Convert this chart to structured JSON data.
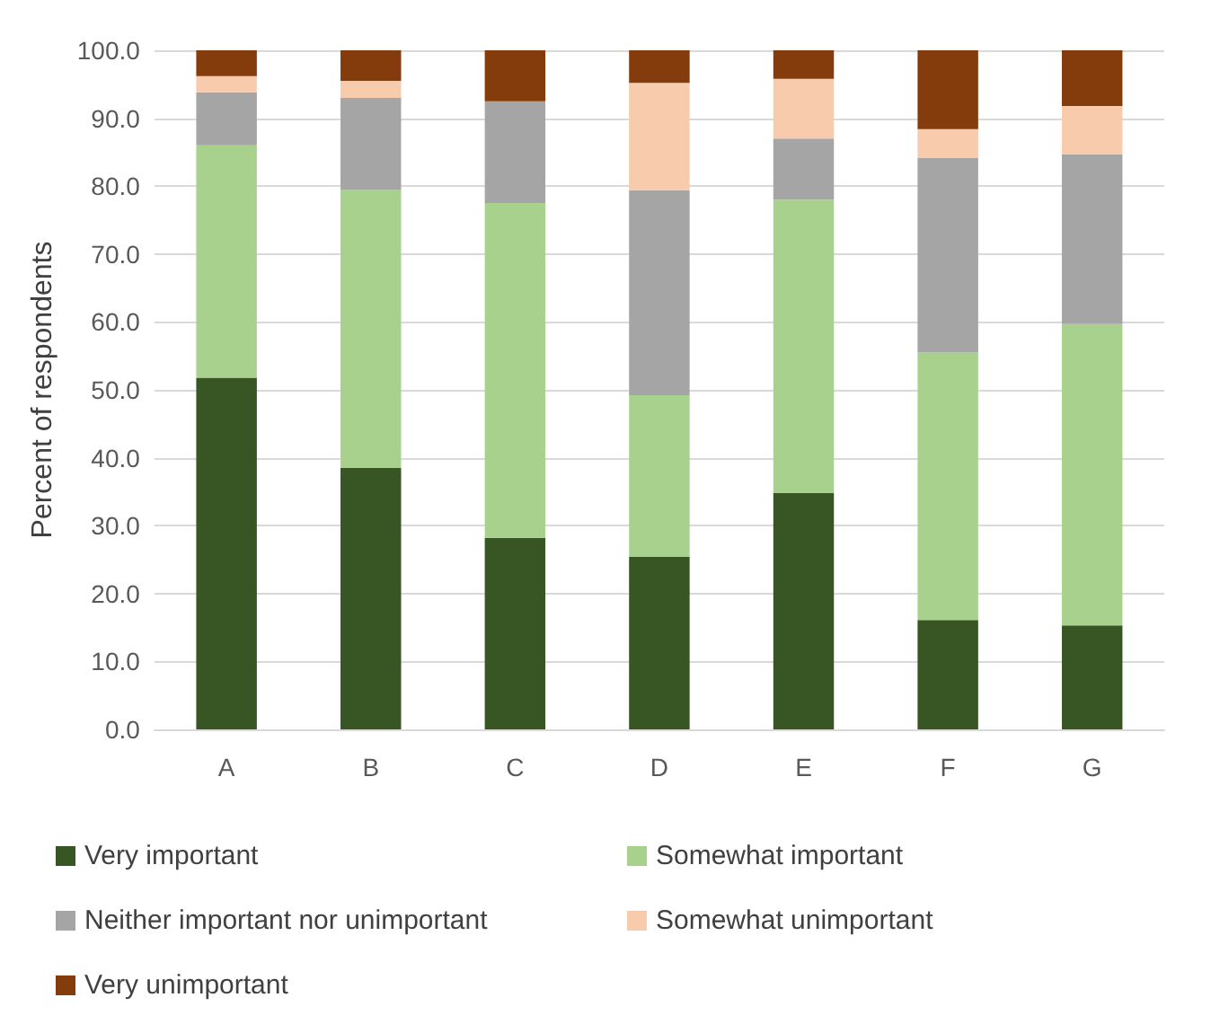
{
  "chart_data": {
    "type": "bar",
    "stacked": true,
    "ylabel": "Percent of respondents",
    "categories": [
      "A",
      "B",
      "C",
      "D",
      "E",
      "F",
      "G"
    ],
    "series": [
      {
        "name": "Very important",
        "color": "#375623",
        "values": [
          51.8,
          38.5,
          28.2,
          25.4,
          34.8,
          16.1,
          15.3
        ]
      },
      {
        "name": "Somewhat important",
        "color": "#a9d18e",
        "values": [
          34.2,
          41.0,
          49.3,
          23.8,
          43.2,
          39.4,
          44.4
        ]
      },
      {
        "name": "Neither important nor unimportant",
        "color": "#a5a5a5",
        "values": [
          7.8,
          13.5,
          15.0,
          30.2,
          9.0,
          28.7,
          25.0
        ]
      },
      {
        "name": "Somewhat unimportant",
        "color": "#f8cbad",
        "values": [
          2.4,
          2.5,
          0,
          15.8,
          8.8,
          4.2,
          7.1
        ]
      },
      {
        "name": "Very unimportant",
        "color": "#843c0c",
        "values": [
          3.8,
          4.5,
          7.5,
          4.8,
          4.2,
          11.6,
          8.2
        ]
      }
    ],
    "ylim": [
      0,
      100
    ],
    "yticks": [
      {
        "value": 0,
        "label": "0.0"
      },
      {
        "value": 10,
        "label": "10.0"
      },
      {
        "value": 20,
        "label": "20.0"
      },
      {
        "value": 30,
        "label": "30.0"
      },
      {
        "value": 40,
        "label": "40.0"
      },
      {
        "value": 50,
        "label": "50.0"
      },
      {
        "value": 60,
        "label": "60.0"
      },
      {
        "value": 70,
        "label": "70.0"
      },
      {
        "value": 80,
        "label": "80.0"
      },
      {
        "value": 90,
        "label": "90.0"
      },
      {
        "value": 100,
        "label": "100.0"
      }
    ],
    "grid": "y",
    "legend": "bottom"
  }
}
